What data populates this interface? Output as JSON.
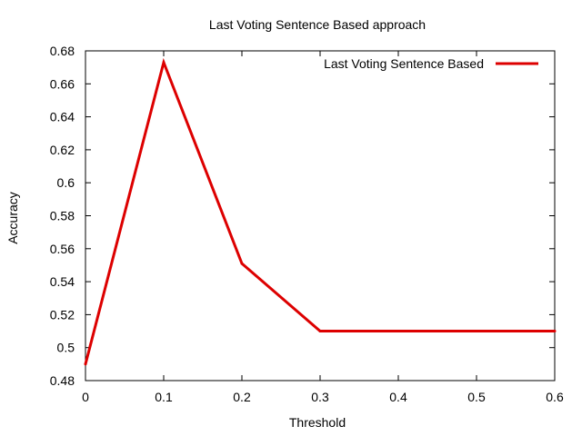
{
  "chart_data": {
    "type": "line",
    "title": "Last Voting Sentence Based approach",
    "xlabel": "Threshold",
    "ylabel": "Accuracy",
    "xlim": [
      0,
      0.6
    ],
    "ylim": [
      0.48,
      0.68
    ],
    "x_ticks": [
      "0",
      "0.1",
      "0.2",
      "0.3",
      "0.4",
      "0.5",
      "0.6"
    ],
    "y_ticks": [
      "0.48",
      "0.5",
      "0.52",
      "0.54",
      "0.56",
      "0.58",
      "0.6",
      "0.62",
      "0.64",
      "0.66",
      "0.68"
    ],
    "grid": false,
    "legend_position": "top-right",
    "series": [
      {
        "name": "Last Voting Sentence Based",
        "color": "#dd0000",
        "x": [
          0,
          0.1,
          0.2,
          0.3,
          0.4,
          0.5,
          0.6
        ],
        "y": [
          0.49,
          0.673,
          0.551,
          0.51,
          0.51,
          0.51,
          0.51
        ]
      }
    ]
  }
}
